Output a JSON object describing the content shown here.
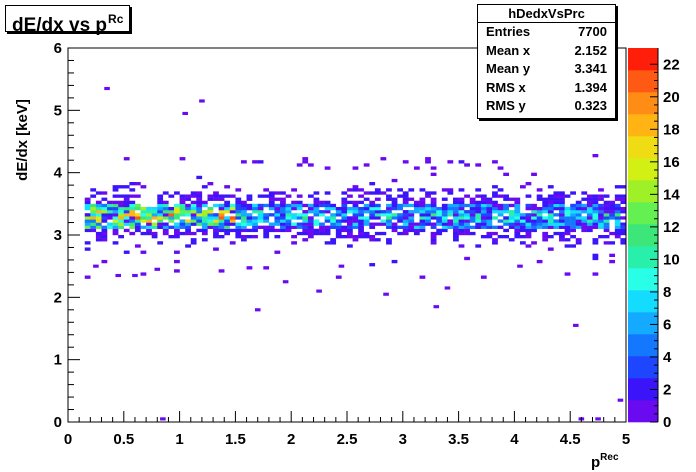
{
  "title": {
    "main": "dE/dx vs p",
    "sup": "Rc"
  },
  "stats": {
    "name": "hDedxVsPrc",
    "rows": [
      {
        "label": "Entries",
        "value": "7700"
      },
      {
        "label": "Mean x",
        "value": "2.152"
      },
      {
        "label": "Mean y",
        "value": "3.341"
      },
      {
        "label": "RMS x",
        "value": "1.394"
      },
      {
        "label": "RMS y",
        "value": "0.323"
      }
    ]
  },
  "chart_data": {
    "type": "heatmap",
    "title": "dE/dx vs p^Rc",
    "xlabel": "p^Rec",
    "ylabel": "dE/dx [keV]",
    "xlim": [
      0,
      5
    ],
    "ylim": [
      0,
      6
    ],
    "x_bins": 100,
    "y_bins": 120,
    "x_ticks": [
      "0",
      "0.5",
      "1",
      "1.5",
      "2",
      "2.5",
      "3",
      "3.5",
      "4",
      "4.5",
      "5"
    ],
    "y_ticks": [
      "0",
      "1",
      "2",
      "3",
      "4",
      "5",
      "6"
    ],
    "z_range": [
      0,
      23
    ],
    "z_ticks": [
      "0",
      "2",
      "4",
      "6",
      "8",
      "10",
      "12",
      "14",
      "16",
      "18",
      "20",
      "22"
    ],
    "band": {
      "center_y": 3.3,
      "half_width_y": 0.22,
      "peak_count": 23
    },
    "outliers": [
      [
        0.35,
        5.35
      ],
      [
        1.2,
        5.15
      ],
      [
        1.05,
        4.95
      ],
      [
        0.85,
        0.05
      ],
      [
        2.45,
        2.5
      ],
      [
        1.95,
        2.25
      ],
      [
        2.25,
        2.1
      ],
      [
        2.85,
        2.05
      ],
      [
        3.3,
        1.85
      ],
      [
        4.55,
        1.55
      ],
      [
        3.4,
        2.15
      ],
      [
        1.7,
        1.8
      ],
      [
        0.8,
        2.45
      ],
      [
        0.6,
        2.35
      ],
      [
        0.45,
        2.35
      ],
      [
        4.05,
        2.5
      ],
      [
        4.95,
        0.35
      ],
      [
        4.6,
        0.05
      ],
      [
        4.75,
        0.05
      ],
      [
        0.25,
        2.5
      ]
    ],
    "palette": [
      "#6A0AF0",
      "#3C14FA",
      "#1E46FF",
      "#1478FF",
      "#14AAFF",
      "#14DCFF",
      "#28FFE6",
      "#28F0AA",
      "#3CE678",
      "#64F050",
      "#A0F028",
      "#D2F014",
      "#F0DC14",
      "#FFB414",
      "#FF8C14",
      "#FF5A14",
      "#FF1E0A"
    ],
    "grid": false,
    "legend": "colorbar-right"
  }
}
